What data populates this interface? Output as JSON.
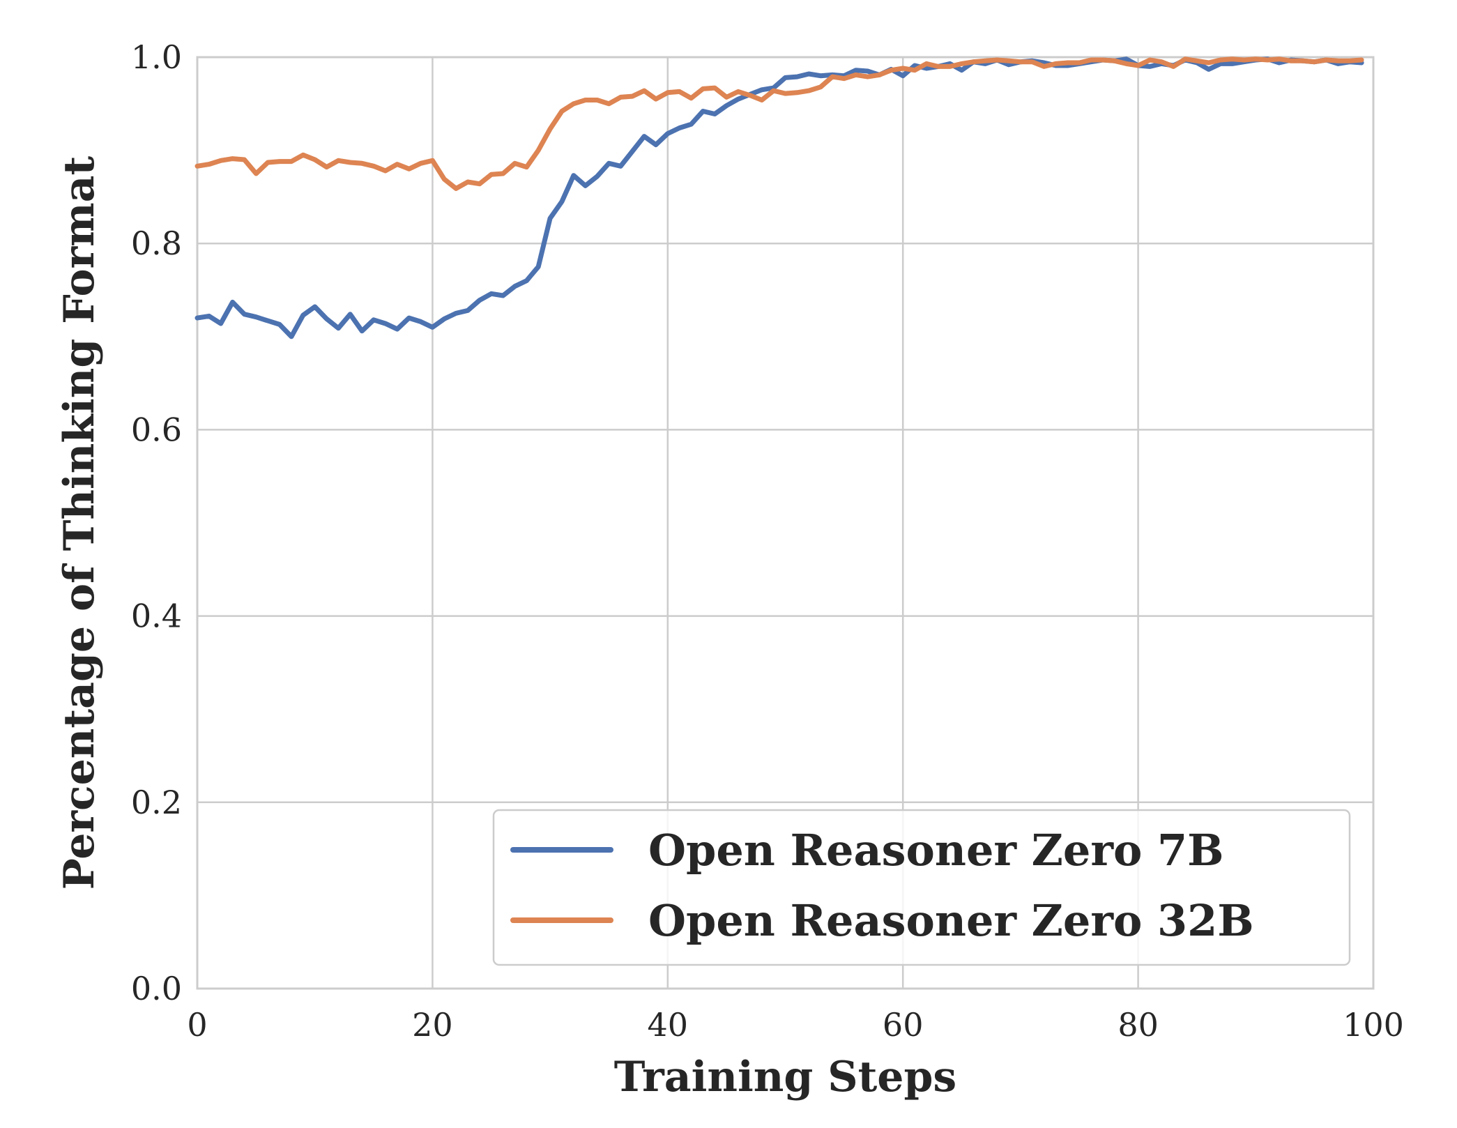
{
  "chart_data": {
    "type": "line",
    "title": "",
    "xlabel": "Training Steps",
    "ylabel": "Percentage of Thinking Format",
    "xlim": [
      0,
      100
    ],
    "ylim": [
      0.0,
      1.0
    ],
    "xticks": [
      "0",
      "20",
      "40",
      "60",
      "80",
      "100"
    ],
    "yticks": [
      "0.0",
      "0.2",
      "0.4",
      "0.6",
      "0.8",
      "1.0"
    ],
    "grid": true,
    "legend_position": "lower-right",
    "series": [
      {
        "name": "Open Reasoner Zero 7B",
        "color": "#4c72b0",
        "x": [
          0,
          1,
          2,
          3,
          4,
          5,
          6,
          7,
          8,
          9,
          10,
          11,
          12,
          13,
          14,
          15,
          16,
          17,
          18,
          19,
          20,
          21,
          22,
          23,
          24,
          25,
          26,
          27,
          28,
          29,
          30,
          31,
          32,
          33,
          34,
          35,
          36,
          37,
          38,
          39,
          40,
          41,
          42,
          43,
          44,
          45,
          46,
          47,
          48,
          49,
          50,
          51,
          52,
          53,
          54,
          55,
          56,
          57,
          58,
          59,
          60,
          61,
          62,
          63,
          64,
          65,
          66,
          67,
          68,
          69,
          70,
          71,
          72,
          73,
          74,
          75,
          76,
          77,
          78,
          79,
          80,
          81,
          82,
          83,
          84,
          85,
          86,
          87,
          88,
          89,
          90,
          91,
          92,
          93,
          94,
          95,
          96,
          97,
          98,
          99
        ],
        "y": [
          0.72,
          0.722,
          0.714,
          0.737,
          0.724,
          0.721,
          0.717,
          0.713,
          0.7,
          0.723,
          0.732,
          0.719,
          0.709,
          0.724,
          0.706,
          0.718,
          0.714,
          0.708,
          0.72,
          0.716,
          0.71,
          0.719,
          0.725,
          0.728,
          0.739,
          0.746,
          0.744,
          0.754,
          0.76,
          0.775,
          0.827,
          0.845,
          0.873,
          0.862,
          0.872,
          0.886,
          0.883,
          0.899,
          0.915,
          0.906,
          0.918,
          0.924,
          0.928,
          0.942,
          0.939,
          0.948,
          0.955,
          0.96,
          0.965,
          0.967,
          0.978,
          0.979,
          0.982,
          0.98,
          0.981,
          0.98,
          0.986,
          0.985,
          0.981,
          0.987,
          0.98,
          0.991,
          0.988,
          0.99,
          0.993,
          0.986,
          0.995,
          0.993,
          0.997,
          0.992,
          0.995,
          0.996,
          0.994,
          0.991,
          0.991,
          0.993,
          0.995,
          0.997,
          0.996,
          0.998,
          0.991,
          0.99,
          0.993,
          0.991,
          0.997,
          0.994,
          0.987,
          0.993,
          0.993,
          0.995,
          0.997,
          0.998,
          0.994,
          0.997,
          0.996,
          0.995,
          0.997,
          0.993,
          0.995,
          0.994
        ]
      },
      {
        "name": "Open Reasoner Zero 32B",
        "color": "#dd8452",
        "x": [
          0,
          1,
          2,
          3,
          4,
          5,
          6,
          7,
          8,
          9,
          10,
          11,
          12,
          13,
          14,
          15,
          16,
          17,
          18,
          19,
          20,
          21,
          22,
          23,
          24,
          25,
          26,
          27,
          28,
          29,
          30,
          31,
          32,
          33,
          34,
          35,
          36,
          37,
          38,
          39,
          40,
          41,
          42,
          43,
          44,
          45,
          46,
          47,
          48,
          49,
          50,
          51,
          52,
          53,
          54,
          55,
          56,
          57,
          58,
          59,
          60,
          61,
          62,
          63,
          64,
          65,
          66,
          67,
          68,
          69,
          70,
          71,
          72,
          73,
          74,
          75,
          76,
          77,
          78,
          79,
          80,
          81,
          82,
          83,
          84,
          85,
          86,
          87,
          88,
          89,
          90,
          91,
          92,
          93,
          94,
          95,
          96,
          97,
          98,
          99
        ],
        "y": [
          0.883,
          0.885,
          0.889,
          0.891,
          0.89,
          0.875,
          0.887,
          0.888,
          0.888,
          0.895,
          0.89,
          0.882,
          0.889,
          0.887,
          0.886,
          0.883,
          0.878,
          0.885,
          0.88,
          0.886,
          0.889,
          0.869,
          0.859,
          0.866,
          0.864,
          0.874,
          0.875,
          0.886,
          0.882,
          0.9,
          0.923,
          0.942,
          0.95,
          0.954,
          0.954,
          0.95,
          0.957,
          0.958,
          0.964,
          0.955,
          0.962,
          0.963,
          0.956,
          0.966,
          0.967,
          0.957,
          0.963,
          0.959,
          0.954,
          0.964,
          0.961,
          0.962,
          0.964,
          0.968,
          0.979,
          0.977,
          0.981,
          0.979,
          0.981,
          0.986,
          0.988,
          0.986,
          0.993,
          0.99,
          0.99,
          0.993,
          0.995,
          0.996,
          0.997,
          0.996,
          0.995,
          0.995,
          0.99,
          0.993,
          0.994,
          0.994,
          0.997,
          0.997,
          0.996,
          0.993,
          0.991,
          0.997,
          0.995,
          0.99,
          0.998,
          0.996,
          0.994,
          0.997,
          0.998,
          0.997,
          0.998,
          0.997,
          0.998,
          0.996,
          0.996,
          0.995,
          0.997,
          0.996,
          0.996,
          0.997
        ]
      }
    ]
  }
}
